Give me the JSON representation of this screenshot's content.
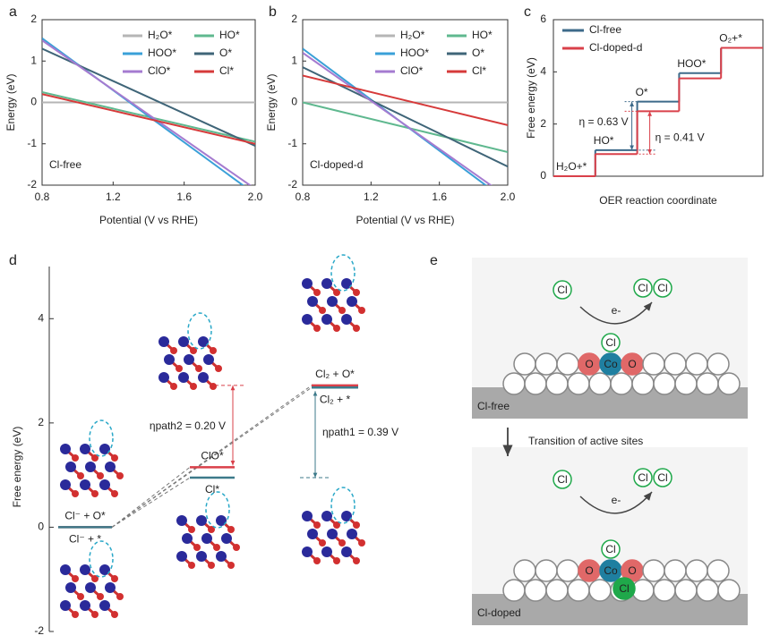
{
  "panel_labels": [
    "a",
    "b",
    "c",
    "d",
    "e"
  ],
  "chart_data": [
    {
      "type": "line",
      "xlabel": "Potential (V vs RHE)",
      "ylabel": "Energy (eV)",
      "annotation": "Cl-free",
      "x": [
        0.8,
        2.0
      ],
      "xlim": [
        0.8,
        2.0
      ],
      "ylim": [
        -2,
        2
      ],
      "xticks": [
        0.8,
        1.2,
        1.6,
        {
          "value": 2,
          "label": "2.0"
        }
      ],
      "yticks": [
        -2,
        -1,
        0,
        1,
        2
      ],
      "legend": "upper right",
      "series": [
        {
          "name": "H₂O*",
          "color": "#b5b5b5",
          "values": [
            0,
            0
          ]
        },
        {
          "name": "HO*",
          "color": "#5fb88f",
          "values": [
            0.25,
            -0.95
          ]
        },
        {
          "name": "HOO*",
          "color": "#3aa0d8",
          "values": [
            1.55,
            -2.22
          ]
        },
        {
          "name": "O*",
          "color": "#3f6578",
          "values": [
            1.3,
            -1.05
          ]
        },
        {
          "name": "ClO*",
          "color": "#a57bd0",
          "values": [
            1.5,
            -2.09
          ]
        },
        {
          "name": "Cl*",
          "color": "#d63a3a",
          "values": [
            0.2,
            -1.0
          ]
        }
      ]
    },
    {
      "type": "line",
      "xlabel": "Potential (V vs RHE)",
      "ylabel": "Energy (eV)",
      "annotation": "Cl-doped-d",
      "x": [
        0.8,
        2.0
      ],
      "xlim": [
        0.8,
        2.0
      ],
      "ylim": [
        -2,
        2
      ],
      "xticks": [
        0.8,
        1.2,
        1.6,
        {
          "value": 2,
          "label": "2.0"
        }
      ],
      "yticks": [
        -2,
        -1,
        0,
        1,
        2
      ],
      "legend": "upper right",
      "series": [
        {
          "name": "H₂O*",
          "color": "#b5b5b5",
          "values": [
            0,
            0
          ]
        },
        {
          "name": "HO*",
          "color": "#5fb88f",
          "values": [
            0,
            -1.2
          ]
        },
        {
          "name": "HOO*",
          "color": "#3aa0d8",
          "values": [
            1.3,
            -2.4
          ]
        },
        {
          "name": "O*",
          "color": "#3f6578",
          "values": [
            0.85,
            -1.55
          ]
        },
        {
          "name": "ClO*",
          "color": "#a57bd0",
          "values": [
            1.2,
            -2.29
          ]
        },
        {
          "name": "Cl*",
          "color": "#d63a3a",
          "values": [
            0.65,
            -0.55
          ]
        }
      ]
    },
    {
      "type": "step",
      "xlabel": "OER reaction coordinate",
      "ylabel": "Free energy (eV)",
      "categories": [
        "H₂O+*",
        "HO*",
        "O*",
        "HOO*",
        "O₂+*"
      ],
      "ylim": [
        0,
        6
      ],
      "yticks": [
        0,
        2,
        4,
        6
      ],
      "legend": "upper left",
      "series": [
        {
          "name": "Cl-free",
          "color": "#3d6a8a",
          "values": [
            0,
            1.0,
            2.86,
            3.95,
            4.92
          ]
        },
        {
          "name": "Cl-doped-d",
          "color": "#d9404a",
          "values": [
            0,
            0.85,
            2.49,
            3.75,
            4.92
          ]
        }
      ],
      "annotations": [
        "η = 0.63 V",
        "η = 0.41 V"
      ]
    },
    {
      "type": "energy_levels",
      "ylabel": "Free energy (eV)",
      "ylim": [
        -2,
        5
      ],
      "yticks": [
        -2,
        0,
        2,
        4
      ],
      "series": [
        {
          "color": "#d9404a",
          "labels": [
            "Cl⁻ + O*",
            "ClO*",
            "Cl₂ + O*"
          ],
          "values": [
            0,
            1.15,
            2.72
          ]
        },
        {
          "color": "#3d7a8a",
          "labels": [
            "Cl⁻ + *",
            "Cl*",
            "Cl₂ + *"
          ],
          "values": [
            0,
            0.95,
            2.68
          ]
        }
      ],
      "annotations": [
        "ηpath2 = 0.20 V",
        "ηpath1 = 0.39 V"
      ]
    }
  ],
  "panel_e": {
    "transition": "Transition of active sites",
    "top": {
      "label": "Cl-free",
      "free_cl": "Cl",
      "cl2": [
        "Cl",
        "Cl"
      ],
      "electron": "e-",
      "adsorbed": "Cl",
      "atoms": [
        "O",
        "Co",
        "O"
      ]
    },
    "bottom": {
      "label": "Cl-doped",
      "free_cl": "Cl",
      "cl2": [
        "Cl",
        "Cl"
      ],
      "electron": "e-",
      "adsorbed": "Cl",
      "atoms": [
        "O",
        "Co",
        "O"
      ],
      "lattice": "Cl"
    }
  }
}
